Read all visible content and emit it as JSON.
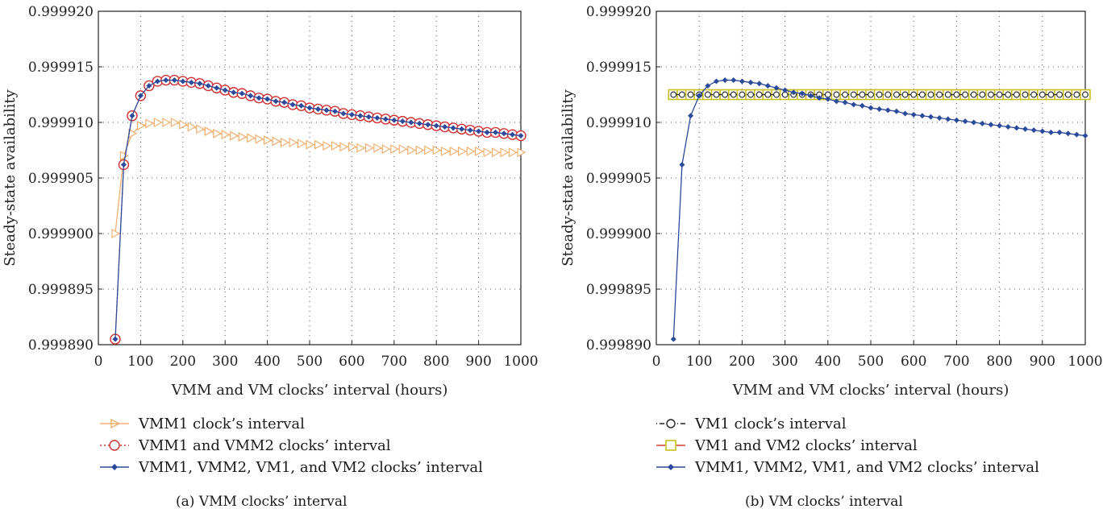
{
  "chart_data": [
    {
      "type": "line",
      "caption": "(a)  VMM clocks’ interval",
      "xlabel": "VMM and VM clocks’ interval (hours)",
      "ylabel": "Steady-state availability",
      "xlim": [
        0,
        1000
      ],
      "ylim": [
        0.99989,
        0.99992
      ],
      "xticks": [
        0,
        100,
        200,
        300,
        400,
        500,
        600,
        700,
        800,
        900,
        1000
      ],
      "yticks": [
        "0.999890",
        "0.999895",
        "0.999900",
        "0.999905",
        "0.999910",
        "0.999915",
        "0.999920"
      ],
      "grid": true,
      "legend_position": "below",
      "series": [
        {
          "name": "VMM1 clock’s interval",
          "color": "#f0b070",
          "marker": "triangle-right",
          "x": [
            40,
            60,
            80,
            100,
            120,
            140,
            160,
            180,
            200,
            220,
            240,
            260,
            280,
            300,
            320,
            340,
            360,
            380,
            400,
            420,
            440,
            460,
            480,
            500,
            520,
            540,
            560,
            580,
            600,
            620,
            640,
            660,
            680,
            700,
            720,
            740,
            760,
            780,
            800,
            820,
            840,
            860,
            880,
            900,
            920,
            940,
            960,
            980,
            1000
          ],
          "y": [
            0.9999,
            0.999907,
            0.999909,
            0.9999097,
            0.9999099,
            0.99991,
            0.99991,
            0.99991,
            0.9999098,
            0.9999096,
            0.9999094,
            0.9999092,
            0.999909,
            0.9999089,
            0.9999088,
            0.9999087,
            0.9999086,
            0.9999085,
            0.9999084,
            0.9999083,
            0.9999082,
            0.9999082,
            0.9999081,
            0.999908,
            0.999908,
            0.9999079,
            0.9999079,
            0.9999078,
            0.9999078,
            0.9999077,
            0.9999077,
            0.9999077,
            0.9999076,
            0.9999076,
            0.9999076,
            0.9999075,
            0.9999075,
            0.9999075,
            0.9999075,
            0.9999074,
            0.9999074,
            0.9999074,
            0.9999074,
            0.9999074,
            0.9999073,
            0.9999073,
            0.9999073,
            0.9999073,
            0.9999073
          ]
        },
        {
          "name": "VMM1 and VMM2 clocks’ interval",
          "color": "#d03030",
          "marker": "circle-open",
          "x": [
            40,
            60,
            80,
            100,
            120,
            140,
            160,
            180,
            200,
            220,
            240,
            260,
            280,
            300,
            320,
            340,
            360,
            380,
            400,
            420,
            440,
            460,
            480,
            500,
            520,
            540,
            560,
            580,
            600,
            620,
            640,
            660,
            680,
            700,
            720,
            740,
            760,
            780,
            800,
            820,
            840,
            860,
            880,
            900,
            920,
            940,
            960,
            980,
            1000
          ],
          "y": [
            0.9998905,
            0.9999062,
            0.9999106,
            0.9999124,
            0.9999133,
            0.9999137,
            0.9999138,
            0.9999138,
            0.9999137,
            0.9999136,
            0.9999135,
            0.9999133,
            0.9999131,
            0.9999129,
            0.9999127,
            0.9999126,
            0.9999124,
            0.9999122,
            0.9999121,
            0.9999119,
            0.9999118,
            0.9999116,
            0.9999115,
            0.9999113,
            0.9999112,
            0.9999111,
            0.999911,
            0.9999108,
            0.9999107,
            0.9999106,
            0.9999105,
            0.9999104,
            0.9999103,
            0.9999102,
            0.9999101,
            0.99991,
            0.9999099,
            0.9999098,
            0.9999097,
            0.9999096,
            0.9999095,
            0.9999094,
            0.9999093,
            0.9999092,
            0.9999091,
            0.9999091,
            0.999909,
            0.9999089,
            0.9999088
          ]
        },
        {
          "name": "VMM1, VMM2, VM1, and VM2 clocks’ interval",
          "color": "#2c4a9a",
          "marker": "diamond-filled",
          "x": [
            40,
            60,
            80,
            100,
            120,
            140,
            160,
            180,
            200,
            220,
            240,
            260,
            280,
            300,
            320,
            340,
            360,
            380,
            400,
            420,
            440,
            460,
            480,
            500,
            520,
            540,
            560,
            580,
            600,
            620,
            640,
            660,
            680,
            700,
            720,
            740,
            760,
            780,
            800,
            820,
            840,
            860,
            880,
            900,
            920,
            940,
            960,
            980,
            1000
          ],
          "y": [
            0.9998905,
            0.9999062,
            0.9999106,
            0.9999124,
            0.9999133,
            0.9999137,
            0.9999138,
            0.9999138,
            0.9999137,
            0.9999136,
            0.9999135,
            0.9999133,
            0.9999131,
            0.9999129,
            0.9999127,
            0.9999126,
            0.9999124,
            0.9999122,
            0.9999121,
            0.9999119,
            0.9999118,
            0.9999116,
            0.9999115,
            0.9999113,
            0.9999112,
            0.9999111,
            0.999911,
            0.9999108,
            0.9999107,
            0.9999106,
            0.9999105,
            0.9999104,
            0.9999103,
            0.9999102,
            0.9999101,
            0.99991,
            0.9999099,
            0.9999098,
            0.9999097,
            0.9999096,
            0.9999095,
            0.9999094,
            0.9999093,
            0.9999092,
            0.9999091,
            0.9999091,
            0.999909,
            0.9999089,
            0.9999088
          ]
        }
      ]
    },
    {
      "type": "line",
      "caption": "(b)  VM clocks’ interval",
      "xlabel": "VMM and VM clocks’ interval (hours)",
      "ylabel": "Steady-state availability",
      "xlim": [
        0,
        1000
      ],
      "ylim": [
        0.99989,
        0.99992
      ],
      "xticks": [
        0,
        100,
        200,
        300,
        400,
        500,
        600,
        700,
        800,
        900,
        1000
      ],
      "yticks": [
        "0.999890",
        "0.999895",
        "0.999900",
        "0.999905",
        "0.999910",
        "0.999915",
        "0.999920"
      ],
      "grid": true,
      "legend_position": "below",
      "series": [
        {
          "name": "VM1 clock’s interval",
          "color": "#222222",
          "marker": "circle-open-small",
          "x": [
            40,
            60,
            80,
            100,
            120,
            140,
            160,
            180,
            200,
            220,
            240,
            260,
            280,
            300,
            320,
            340,
            360,
            380,
            400,
            420,
            440,
            460,
            480,
            500,
            520,
            540,
            560,
            580,
            600,
            620,
            640,
            660,
            680,
            700,
            720,
            740,
            760,
            780,
            800,
            820,
            840,
            860,
            880,
            900,
            920,
            940,
            960,
            980,
            1000
          ],
          "y": [
            0.9999125,
            0.9999125,
            0.9999125,
            0.9999125,
            0.9999125,
            0.9999125,
            0.9999125,
            0.9999125,
            0.9999125,
            0.9999125,
            0.9999125,
            0.9999125,
            0.9999125,
            0.9999125,
            0.9999125,
            0.9999125,
            0.9999125,
            0.9999125,
            0.9999125,
            0.9999125,
            0.9999125,
            0.9999125,
            0.9999125,
            0.9999125,
            0.9999125,
            0.9999125,
            0.9999125,
            0.9999125,
            0.9999125,
            0.9999125,
            0.9999125,
            0.9999125,
            0.9999125,
            0.9999125,
            0.9999125,
            0.9999125,
            0.9999125,
            0.9999125,
            0.9999125,
            0.9999125,
            0.9999125,
            0.9999125,
            0.9999125,
            0.9999125,
            0.9999125,
            0.9999125,
            0.9999125,
            0.9999125,
            0.9999125
          ]
        },
        {
          "name": "VM1 and VM2 clocks’ interval",
          "color": "#c8c020",
          "line_color": "#d04030",
          "marker": "square-open",
          "x": [
            40,
            60,
            80,
            100,
            120,
            140,
            160,
            180,
            200,
            220,
            240,
            260,
            280,
            300,
            320,
            340,
            360,
            380,
            400,
            420,
            440,
            460,
            480,
            500,
            520,
            540,
            560,
            580,
            600,
            620,
            640,
            660,
            680,
            700,
            720,
            740,
            760,
            780,
            800,
            820,
            840,
            860,
            880,
            900,
            920,
            940,
            960,
            980,
            1000
          ],
          "y": [
            0.9999125,
            0.9999125,
            0.9999125,
            0.9999125,
            0.9999125,
            0.9999125,
            0.9999125,
            0.9999125,
            0.9999125,
            0.9999125,
            0.9999125,
            0.9999125,
            0.9999125,
            0.9999125,
            0.9999125,
            0.9999125,
            0.9999125,
            0.9999125,
            0.9999125,
            0.9999125,
            0.9999125,
            0.9999125,
            0.9999125,
            0.9999125,
            0.9999125,
            0.9999125,
            0.9999125,
            0.9999125,
            0.9999125,
            0.9999125,
            0.9999125,
            0.9999125,
            0.9999125,
            0.9999125,
            0.9999125,
            0.9999125,
            0.9999125,
            0.9999125,
            0.9999125,
            0.9999125,
            0.9999125,
            0.9999125,
            0.9999125,
            0.9999125,
            0.9999125,
            0.9999125,
            0.9999125,
            0.9999125,
            0.9999125
          ]
        },
        {
          "name": "VMM1, VMM2, VM1, and VM2 clocks’ interval",
          "color": "#2c4a9a",
          "marker": "diamond-filled",
          "x": [
            40,
            60,
            80,
            100,
            120,
            140,
            160,
            180,
            200,
            220,
            240,
            260,
            280,
            300,
            320,
            340,
            360,
            380,
            400,
            420,
            440,
            460,
            480,
            500,
            520,
            540,
            560,
            580,
            600,
            620,
            640,
            660,
            680,
            700,
            720,
            740,
            760,
            780,
            800,
            820,
            840,
            860,
            880,
            900,
            920,
            940,
            960,
            980,
            1000
          ],
          "y": [
            0.9998905,
            0.9999062,
            0.9999106,
            0.9999124,
            0.9999133,
            0.9999137,
            0.9999138,
            0.9999138,
            0.9999137,
            0.9999136,
            0.9999135,
            0.9999133,
            0.9999131,
            0.9999129,
            0.9999127,
            0.9999126,
            0.9999124,
            0.9999122,
            0.9999121,
            0.9999119,
            0.9999118,
            0.9999116,
            0.9999115,
            0.9999113,
            0.9999112,
            0.9999111,
            0.999911,
            0.9999108,
            0.9999107,
            0.9999106,
            0.9999105,
            0.9999104,
            0.9999103,
            0.9999102,
            0.9999101,
            0.99991,
            0.9999099,
            0.9999098,
            0.9999097,
            0.9999096,
            0.9999095,
            0.9999094,
            0.9999093,
            0.9999092,
            0.9999091,
            0.9999091,
            0.999909,
            0.9999089,
            0.9999088
          ]
        }
      ]
    }
  ]
}
